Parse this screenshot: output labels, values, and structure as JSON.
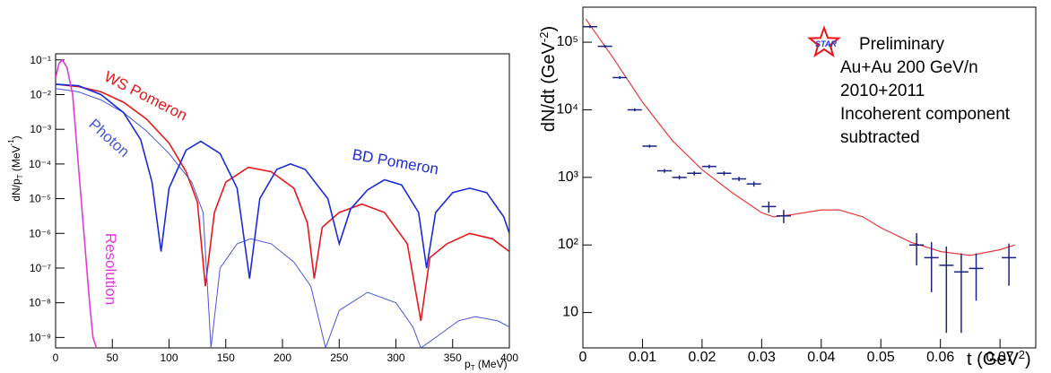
{
  "chart_data": [
    {
      "type": "line",
      "y_label": {
        "main": "dN/p",
        "sub": "T",
        "unit": " (MeV",
        "sup": "-1",
        "end": ")"
      },
      "x_label": {
        "main": "p",
        "sub": "T",
        "unit": " (MeV)"
      },
      "log_y": true,
      "xlim": [
        0,
        400
      ],
      "xticks": [
        0,
        50,
        100,
        150,
        200,
        250,
        300,
        350,
        400
      ],
      "ylim": [
        5e-10,
        0.15
      ],
      "yticks": [
        {
          "value": 1e-09,
          "label": "10⁻⁹"
        },
        {
          "value": 1e-08,
          "label": "10⁻⁸"
        },
        {
          "value": 1e-07,
          "label": "10⁻⁷"
        },
        {
          "value": 1e-06,
          "label": "10⁻⁶"
        },
        {
          "value": 1e-05,
          "label": "10⁻⁵"
        },
        {
          "value": 0.0001,
          "label": "10⁻⁴"
        },
        {
          "value": 0.001,
          "label": "10⁻³"
        },
        {
          "value": 0.01,
          "label": "10⁻²"
        },
        {
          "value": 0.1,
          "label": "10⁻¹"
        }
      ],
      "series": [
        {
          "name": "WS Pomeron",
          "color": "#e8171b",
          "x": [
            0,
            20,
            40,
            60,
            80,
            100,
            115,
            125,
            132,
            140,
            150,
            170,
            190,
            210,
            222,
            228,
            235,
            250,
            270,
            290,
            310,
            322,
            330,
            345,
            365,
            385,
            400
          ],
          "values": [
            0.02,
            0.017,
            0.012,
            0.006,
            0.002,
            0.0004,
            6e-05,
            8e-06,
            3e-08,
            4e-06,
            3e-05,
            8e-05,
            6e-05,
            2e-05,
            2e-06,
            5e-08,
            1.5e-06,
            4e-06,
            7e-06,
            4e-06,
            5e-07,
            3e-09,
            2e-07,
            5e-07,
            1e-06,
            7e-07,
            3e-07
          ]
        },
        {
          "name": "Photon",
          "color": "#4a55d8",
          "x": [
            0,
            20,
            40,
            60,
            80,
            100,
            120,
            130,
            137,
            145,
            160,
            172,
            190,
            210,
            225,
            238,
            250,
            275,
            300,
            315,
            322,
            335,
            355,
            370,
            390,
            400
          ],
          "values": [
            0.015,
            0.012,
            0.007,
            0.003,
            0.0009,
            0.0002,
            3e-05,
            4e-06,
            5e-10,
            1e-07,
            5e-07,
            7e-07,
            5e-07,
            1.5e-07,
            3e-08,
            5e-10,
            6e-09,
            2e-08,
            1e-08,
            2e-09,
            5e-10,
            1e-09,
            3e-09,
            4e-09,
            3e-09,
            2e-09
          ]
        },
        {
          "name": "BD Pomeron",
          "color": "#1a2bd8",
          "x": [
            0,
            20,
            40,
            60,
            75,
            85,
            93,
            100,
            115,
            128,
            145,
            160,
            171,
            180,
            195,
            207,
            220,
            240,
            250,
            260,
            275,
            290,
            305,
            320,
            327,
            335,
            350,
            365,
            380,
            395,
            400
          ],
          "values": [
            0.02,
            0.018,
            0.01,
            0.003,
            0.0005,
            3e-05,
            3e-07,
            2e-05,
            0.00025,
            0.00045,
            0.0002,
            2e-05,
            5e-08,
            1e-05,
            7e-05,
            0.0001,
            7e-05,
            1e-05,
            5e-07,
            5e-06,
            1.8e-05,
            3.5e-05,
            2.5e-05,
            4e-06,
            1e-07,
            4e-06,
            1.5e-05,
            2e-05,
            1.5e-05,
            3e-06,
            1e-06
          ]
        },
        {
          "name": "Resolution",
          "color": "#e03ad8",
          "x": [
            0,
            3,
            6,
            10,
            15,
            20,
            25,
            30,
            33,
            36
          ],
          "values": [
            0.03,
            0.08,
            0.1,
            0.06,
            0.01,
            0.0001,
            1e-06,
            1e-08,
            1e-09,
            5e-10
          ]
        }
      ]
    },
    {
      "type": "errorbar",
      "y_label": {
        "main": "dN/dt (GeV",
        "sup": "-2",
        "end": ")"
      },
      "x_label": {
        "main": "t (GeV",
        "sup": "2",
        "end": ")"
      },
      "log_y": true,
      "xlim": [
        0,
        0.076
      ],
      "xticks": [
        0,
        0.01,
        0.02,
        0.03,
        0.04,
        0.05,
        0.06,
        0.07
      ],
      "ylim": [
        3,
        330000
      ],
      "yticks": [
        10,
        {
          "value": 100,
          "label": "10²"
        },
        {
          "value": 1000,
          "label": "10³"
        },
        {
          "value": 10000,
          "label": "10⁴"
        },
        {
          "value": 100000,
          "label": "10⁵"
        }
      ],
      "color": "#1a237e",
      "x": [
        0.0012,
        0.0037,
        0.0062,
        0.0087,
        0.0112,
        0.0137,
        0.0162,
        0.0187,
        0.0212,
        0.0237,
        0.0262,
        0.0287,
        0.0312,
        0.0337,
        0.056,
        0.0585,
        0.061,
        0.0635,
        0.066,
        0.0715
      ],
      "values": [
        170000,
        87000,
        30000,
        10000,
        2900,
        1250,
        1000,
        1150,
        1450,
        1150,
        950,
        800,
        370,
        270,
        100,
        65,
        50,
        40,
        45,
        65
      ],
      "errors": [
        8000,
        4000,
        1500,
        500,
        150,
        80,
        70,
        80,
        90,
        80,
        70,
        70,
        70,
        60,
        50,
        45,
        45,
        35,
        30,
        40
      ],
      "fit": {
        "color": "#e8383b",
        "x": [
          0.0005,
          0.005,
          0.01,
          0.015,
          0.02,
          0.025,
          0.03,
          0.032,
          0.035,
          0.04,
          0.043,
          0.047,
          0.05,
          0.055,
          0.06,
          0.065,
          0.07,
          0.0725
        ],
        "values": [
          220000,
          60000,
          13000,
          3500,
          1300,
          600,
          300,
          260,
          280,
          330,
          330,
          260,
          180,
          110,
          80,
          70,
          85,
          100
        ]
      },
      "logo_text": "STAR",
      "annotations": [
        "Preliminary",
        "Au+Au 200 GeV/n",
        "2010+2011",
        "Incoherent component",
        "subtracted"
      ]
    }
  ]
}
